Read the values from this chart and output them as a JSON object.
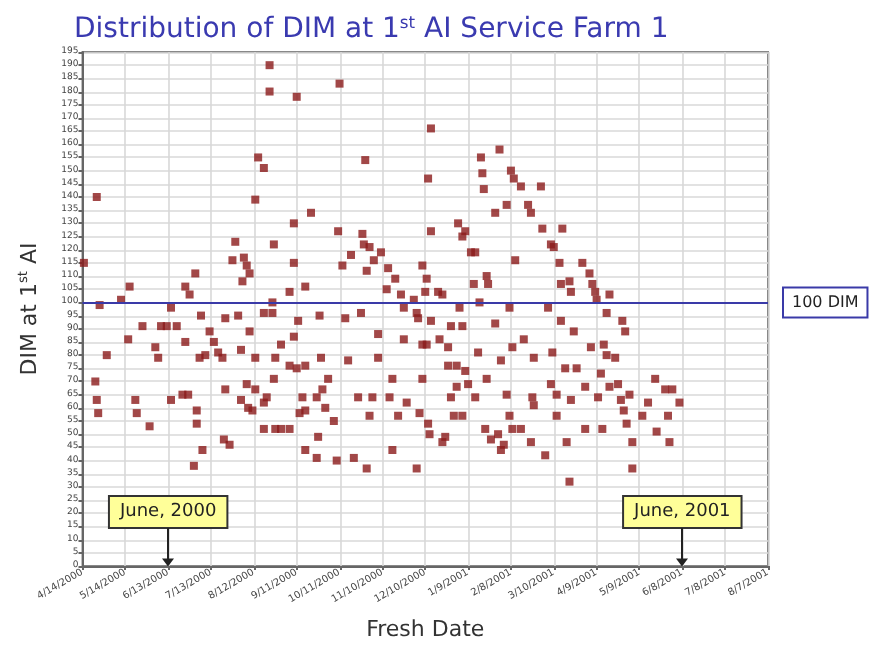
{
  "chart_data": {
    "type": "scatter",
    "title": "Distribution of DIM at 1$^{st}$ AI Service Farm 1",
    "xlabel": "Fresh Date",
    "ylabel": "DIM at 1$^{st}$ AI",
    "marker": "square",
    "grid": true,
    "xlim": [
      "2000-04-14",
      "2001-08-07"
    ],
    "xticks": [
      {
        "value": "2000-04-14",
        "label": "4/14/2000"
      },
      {
        "value": "2000-05-14",
        "label": "5/14/2000"
      },
      {
        "value": "2000-06-13",
        "label": "6/13/2000"
      },
      {
        "value": "2000-07-13",
        "label": "7/13/2000"
      },
      {
        "value": "2000-08-12",
        "label": "8/12/2000"
      },
      {
        "value": "2000-09-11",
        "label": "9/11/2000"
      },
      {
        "value": "2000-10-11",
        "label": "10/11/2000"
      },
      {
        "value": "2000-11-10",
        "label": "11/10/2000"
      },
      {
        "value": "2000-12-10",
        "label": "12/10/2000"
      },
      {
        "value": "2001-01-09",
        "label": "1/9/2001"
      },
      {
        "value": "2001-02-08",
        "label": "2/8/2001"
      },
      {
        "value": "2001-03-10",
        "label": "3/10/2001"
      },
      {
        "value": "2001-04-09",
        "label": "4/9/2001"
      },
      {
        "value": "2001-05-09",
        "label": "5/9/2001"
      },
      {
        "value": "2001-06-08",
        "label": "6/8/2001"
      },
      {
        "value": "2001-07-08",
        "label": "7/8/2001"
      },
      {
        "value": "2001-08-07",
        "label": "8/7/2001"
      }
    ],
    "ylim": [
      0,
      195
    ],
    "yticks": [
      0,
      5,
      10,
      15,
      20,
      25,
      30,
      35,
      40,
      45,
      50,
      55,
      60,
      65,
      70,
      75,
      80,
      85,
      90,
      95,
      100,
      105,
      110,
      115,
      120,
      125,
      130,
      135,
      140,
      145,
      150,
      155,
      160,
      165,
      170,
      175,
      180,
      185,
      190,
      195
    ],
    "ref_lines": [
      {
        "axis": "y",
        "value": 100,
        "label": "100 DIM",
        "color": "#3a3aa8"
      }
    ],
    "annotations": [
      {
        "text": "June, 2000",
        "x": "2000-06-13"
      },
      {
        "text": "June, 2001",
        "x": "2001-06-08"
      }
    ],
    "series": [
      {
        "color": "#8b1a1a",
        "x": [
          "2000-04-15",
          "2000-04-24",
          "2000-04-26",
          "2000-04-23",
          "2000-04-24",
          "2000-04-25",
          "2000-05-01",
          "2000-05-11",
          "2000-05-17",
          "2000-05-16",
          "2000-05-26",
          "2000-05-31",
          "2000-05-21",
          "2000-05-22",
          "2000-06-08",
          "2000-06-12",
          "2000-06-04",
          "2000-06-06",
          "2000-06-15",
          "2000-06-19",
          "2000-06-15",
          "2000-06-23",
          "2000-06-27",
          "2000-06-25",
          "2000-06-28",
          "2000-07-02",
          "2000-06-25",
          "2000-07-03",
          "2000-07-03",
          "2000-07-07",
          "2000-07-01",
          "2000-07-06",
          "2000-07-09",
          "2000-07-05",
          "2000-07-12",
          "2000-07-15",
          "2000-07-18",
          "2000-07-21",
          "2000-07-23",
          "2000-07-23",
          "2000-07-22",
          "2000-07-26",
          "2000-07-28",
          "2000-07-30",
          "2000-08-03",
          "2000-08-01",
          "2000-08-05",
          "2000-08-07",
          "2000-08-04",
          "2000-08-09",
          "2000-08-09",
          "2000-08-03",
          "2000-08-07",
          "2000-08-11",
          "2000-08-08",
          "2000-08-13",
          "2000-08-15",
          "2000-08-19",
          "2000-08-23",
          "2000-08-23",
          "2000-08-19",
          "2000-08-13",
          "2000-08-13",
          "2000-08-19",
          "2000-08-19",
          "2000-08-21",
          "2000-08-25",
          "2000-08-26",
          "2000-08-25",
          "2000-08-27",
          "2000-08-31",
          "2000-08-26",
          "2000-08-27",
          "2000-08-31",
          "2000-09-06",
          "2000-09-11",
          "2000-09-09",
          "2000-09-09",
          "2000-09-06",
          "2000-09-12",
          "2000-09-09",
          "2000-09-06",
          "2000-09-11",
          "2000-09-17",
          "2000-09-15",
          "2000-09-13",
          "2000-09-17",
          "2000-09-17",
          "2000-09-21",
          "2000-09-27",
          "2000-09-28",
          "2000-09-25",
          "2000-09-29",
          "2000-10-01",
          "2000-09-26",
          "2000-09-17",
          "2000-09-25",
          "2000-10-03",
          "2000-10-07",
          "2000-10-11",
          "2000-10-10",
          "2000-10-13",
          "2000-10-15",
          "2000-10-09",
          "2000-10-17",
          "2000-10-19",
          "2000-10-21",
          "2000-10-24",
          "2000-10-26",
          "2000-10-27",
          "2000-10-29",
          "2000-10-28",
          "2000-10-30",
          "2000-11-01",
          "2000-11-04",
          "2000-11-09",
          "2000-11-07",
          "2000-11-07",
          "2000-11-03",
          "2000-10-30",
          "2000-11-01",
          "2000-11-13",
          "2000-11-17",
          "2000-11-17",
          "2000-11-14",
          "2000-11-19",
          "2000-11-23",
          "2000-11-25",
          "2000-11-25",
          "2000-11-21",
          "2000-11-27",
          "2000-12-02",
          "2000-12-04",
          "2000-12-04",
          "2000-12-08",
          "2000-12-11",
          "2000-12-14",
          "2000-12-12",
          "2000-12-14",
          "2000-12-14",
          "2000-12-12",
          "2000-12-13",
          "2000-12-11",
          "2000-11-15",
          "2000-12-10",
          "2000-12-05",
          "2000-12-08",
          "2000-12-19",
          "2000-12-22",
          "2000-12-20",
          "2000-12-26",
          "2000-12-28",
          "2000-12-08",
          "2000-12-06",
          "2000-12-24",
          "2000-12-22",
          "2000-12-26",
          "2000-12-28",
          "2000-12-30",
          "2001-01-01",
          "2001-01-01",
          "2001-01-02",
          "2001-01-05",
          "2001-01-07",
          "2001-01-03",
          "2001-01-05",
          "2001-01-07",
          "2001-01-05",
          "2001-01-11",
          "2001-01-14",
          "2001-01-09",
          "2001-01-14",
          "2001-01-13",
          "2001-01-18",
          "2001-01-19",
          "2001-01-20",
          "2001-01-22",
          "2001-01-23",
          "2001-01-17",
          "2001-01-16",
          "2001-01-22",
          "2001-01-21",
          "2001-01-25",
          "2001-01-28",
          "2001-01-28",
          "2001-01-30",
          "2001-02-01",
          "2001-02-03",
          "2001-02-01",
          "2001-01-31",
          "2001-02-05",
          "2001-02-07",
          "2001-02-08",
          "2001-02-10",
          "2001-02-05",
          "2001-02-07",
          "2001-02-09",
          "2001-02-11",
          "2001-02-09",
          "2001-02-15",
          "2001-02-15",
          "2001-02-17",
          "2001-02-20",
          "2001-02-22",
          "2001-02-23",
          "2001-02-24",
          "2001-02-24",
          "2001-02-22",
          "2001-03-01",
          "2001-03-02",
          "2001-03-06",
          "2001-03-04",
          "2001-03-08",
          "2001-03-10",
          "2001-03-09",
          "2001-03-08",
          "2001-03-12",
          "2001-03-14",
          "2001-03-15",
          "2001-03-16",
          "2001-03-15",
          "2001-03-12",
          "2001-03-18",
          "2001-03-21",
          "2001-03-22",
          "2001-03-24",
          "2001-03-19",
          "2001-03-21",
          "2001-03-22",
          "2001-03-26",
          "2001-03-30",
          "2001-04-01",
          "2001-04-01",
          "2001-04-04",
          "2001-04-06",
          "2001-04-05",
          "2001-04-08",
          "2001-04-09",
          "2001-04-10",
          "2001-04-14",
          "2001-04-12",
          "2001-04-16",
          "2001-04-18",
          "2001-04-13",
          "2001-04-16",
          "2001-04-22",
          "2001-04-18",
          "2001-04-24",
          "2001-04-26",
          "2001-04-27",
          "2001-04-29",
          "2001-04-28",
          "2001-04-30",
          "2001-05-02",
          "2001-05-04",
          "2001-05-04",
          "2001-05-11",
          "2001-05-15",
          "2001-05-20",
          "2001-05-21",
          "2001-05-27",
          "2001-05-29",
          "2001-06-01",
          "2001-06-06",
          "2001-05-30"
        ],
        "values": [
          115,
          140,
          99,
          70,
          63,
          58,
          80,
          101,
          106,
          86,
          91,
          53,
          63,
          58,
          91,
          91,
          83,
          79,
          98,
          91,
          63,
          65,
          65,
          106,
          103,
          111,
          85,
          59,
          54,
          44,
          38,
          95,
          80,
          79,
          89,
          85,
          81,
          79,
          94,
          67,
          48,
          46,
          116,
          123,
          82,
          95,
          117,
          114,
          108,
          111,
          89,
          63,
          69,
          59,
          60,
          139,
          155,
          151,
          190,
          180,
          96,
          79,
          67,
          62,
          52,
          64,
          100,
          122,
          96,
          79,
          84,
          71,
          52,
          52,
          52,
          178,
          130,
          115,
          104,
          93,
          87,
          76,
          75,
          76,
          64,
          58,
          59,
          106,
          134,
          95,
          79,
          64,
          67,
          60,
          49,
          44,
          41,
          71,
          55,
          183,
          127,
          114,
          94,
          40,
          78,
          118,
          41,
          64,
          96,
          126,
          154,
          122,
          112,
          121,
          116,
          119,
          88,
          79,
          64,
          37,
          57,
          105,
          71,
          44,
          113,
          109,
          103,
          98,
          86,
          57,
          62,
          101,
          96,
          37,
          114,
          84,
          166,
          147,
          127,
          93,
          54,
          50,
          109,
          64,
          104,
          94,
          84,
          104,
          103,
          86,
          83,
          91,
          71,
          58,
          49,
          47,
          76,
          64,
          57,
          68,
          76,
          130,
          125,
          127,
          98,
          91,
          74,
          57,
          119,
          119,
          69,
          64,
          107,
          155,
          149,
          143,
          110,
          107,
          100,
          81,
          71,
          52,
          48,
          134,
          92,
          50,
          44,
          46,
          78,
          158,
          137,
          98,
          150,
          147,
          65,
          57,
          52,
          116,
          83,
          144,
          52,
          86,
          137,
          134,
          64,
          61,
          79,
          47,
          144,
          128,
          98,
          42,
          122,
          121,
          81,
          69,
          57,
          115,
          107,
          128,
          93,
          65,
          75,
          108,
          104,
          89,
          47,
          32,
          63,
          75,
          115,
          68,
          52,
          111,
          107,
          83,
          104,
          101,
          64,
          84,
          73,
          96,
          103,
          52,
          80,
          79,
          68,
          69,
          63,
          93,
          89,
          59,
          54,
          65,
          47,
          37,
          57,
          62,
          71,
          51,
          67,
          57,
          67,
          62,
          47
        ]
      }
    ]
  }
}
